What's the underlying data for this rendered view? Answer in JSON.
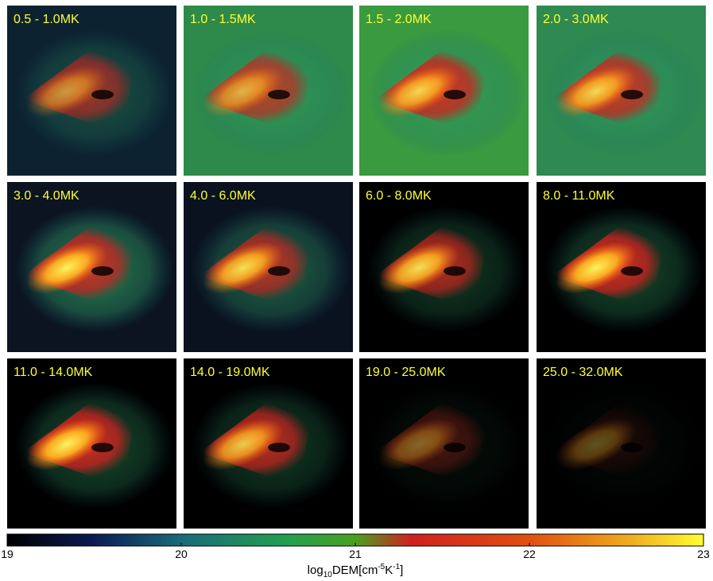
{
  "panels": [
    {
      "label": "0.5 - 1.0MK"
    },
    {
      "label": "1.0 - 1.5MK"
    },
    {
      "label": "1.5 - 2.0MK"
    },
    {
      "label": "2.0 - 3.0MK"
    },
    {
      "label": "3.0 - 4.0MK"
    },
    {
      "label": "4.0 - 6.0MK"
    },
    {
      "label": "6.0 - 8.0MK"
    },
    {
      "label": "8.0 - 11.0MK"
    },
    {
      "label": "11.0 - 14.0MK"
    },
    {
      "label": "14.0 - 19.0MK"
    },
    {
      "label": "19.0 - 25.0MK"
    },
    {
      "label": "25.0 - 32.0MK"
    }
  ],
  "colorbar": {
    "lim": [
      19,
      23
    ],
    "ticks": [
      19,
      20,
      21,
      22,
      23
    ],
    "label": {
      "base": "log",
      "sub": "10",
      "unit": "DEM[cm",
      "exp1": "-5",
      "unit2": "K",
      "exp2": "-1",
      "close": "]"
    }
  }
}
